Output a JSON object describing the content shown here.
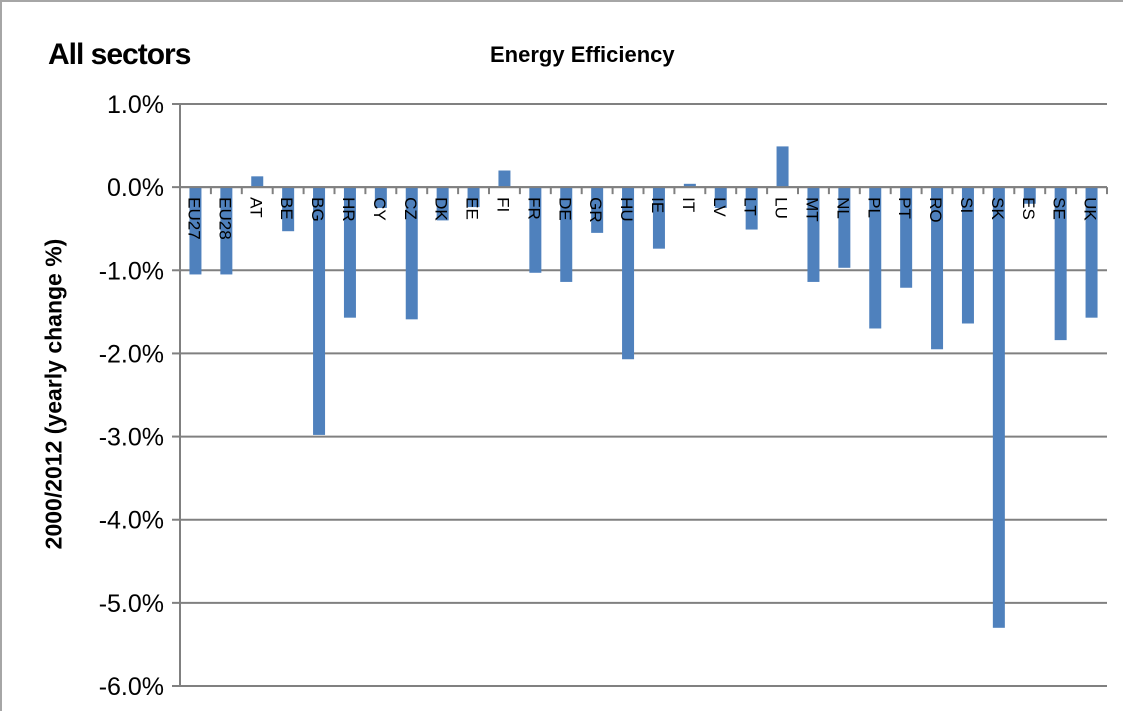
{
  "corner_title": "All sectors",
  "chart_data": {
    "type": "bar",
    "title": "Energy Efficiency",
    "xlabel": "",
    "ylabel": "2000/2012 (yearly change %)",
    "categories": [
      "EU27",
      "EU28",
      "AT",
      "BE",
      "BG",
      "HR",
      "CY",
      "CZ",
      "DK",
      "EE",
      "FI",
      "FR",
      "DE",
      "GR",
      "HU",
      "IE",
      "IT",
      "LV",
      "LT",
      "LU",
      "MT",
      "NL",
      "PL",
      "PT",
      "RO",
      "SI",
      "SK",
      "ES",
      "SE",
      "UK"
    ],
    "values": [
      -1.05,
      -1.05,
      0.13,
      -0.53,
      -2.98,
      -1.57,
      -0.25,
      -1.59,
      -0.4,
      -0.24,
      0.2,
      -1.03,
      -1.14,
      -0.55,
      -2.07,
      -0.74,
      0.04,
      -0.25,
      -0.51,
      0.49,
      -1.14,
      -0.97,
      -1.7,
      -1.21,
      -1.95,
      -1.64,
      -5.3,
      -0.2,
      -1.84,
      -1.57
    ],
    "ylim": [
      -6.0,
      1.0
    ],
    "yticks": [
      "1.0%",
      "0.0%",
      "-1.0%",
      "-2.0%",
      "-3.0%",
      "-4.0%",
      "-5.0%",
      "-6.0%"
    ],
    "grid": true,
    "bar_color": "#4f81bd",
    "grid_color": "#808080"
  }
}
